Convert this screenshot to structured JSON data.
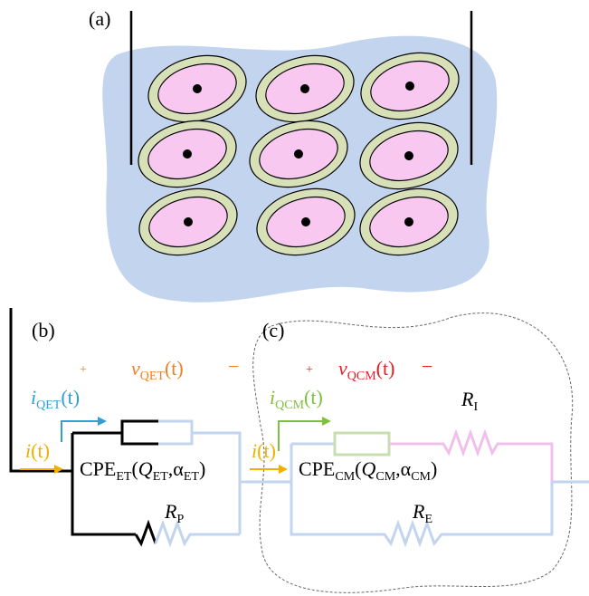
{
  "panels": {
    "a": "(a)",
    "b": "(b)",
    "c": "(c)"
  },
  "voltage_et": {
    "plus": "+",
    "v": "v",
    "sub": "QET",
    "arg": "(t)",
    "minus": "−"
  },
  "voltage_cm": {
    "plus": "+",
    "v": "v",
    "sub": "QCM",
    "arg": "(t)",
    "minus": "−"
  },
  "current_et": {
    "i": "i",
    "sub": "QET",
    "arg": "(t)"
  },
  "current_cm": {
    "i": "i",
    "sub": "QCM",
    "arg": "(t)"
  },
  "input_current_b": {
    "i": "i",
    "arg": "(t)"
  },
  "input_current_c": {
    "i": "i",
    "arg": "(t)"
  },
  "cpe_et": {
    "name": "CPE",
    "sub": "ET",
    "open": "(",
    "q": "Q",
    "q_sub": "ET",
    "sep": ",α",
    "a_sub": "ET",
    "close": ")"
  },
  "cpe_cm": {
    "name": "CPE",
    "sub": "CM",
    "open": "(",
    "q": "Q",
    "q_sub": "CM",
    "sep": ",α",
    "a_sub": "CM",
    "close": ")"
  },
  "r_p": {
    "r": "R",
    "sub": "P"
  },
  "r_i": {
    "r": "R",
    "sub": "I"
  },
  "r_e": {
    "r": "R",
    "sub": "E"
  }
}
